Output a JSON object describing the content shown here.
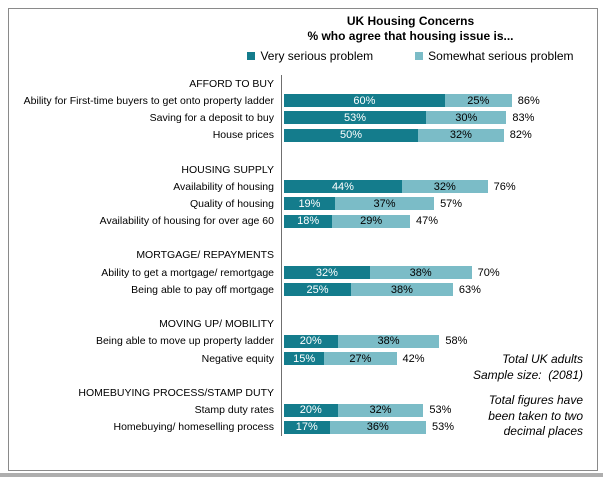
{
  "title": "UK Housing Concerns",
  "subtitle": "% who agree that housing issue is...",
  "legend": [
    {
      "label": "Very serious problem",
      "color": "#147C8C"
    },
    {
      "label": "Somewhat serious problem",
      "color": "#7BBCC7"
    }
  ],
  "annotations": {
    "sample_line1": "Total UK adults",
    "sample_line2": "Sample size:  (2081)",
    "note_line1": "Total figures have",
    "note_line2": "been taken to two",
    "note_line3": "decimal places"
  },
  "chart_data": {
    "type": "bar",
    "orientation": "horizontal",
    "stacked": true,
    "title": "UK Housing Concerns",
    "subtitle": "% who agree that housing issue is...",
    "xlim": [
      0,
      100
    ],
    "grid": false,
    "legend_position": "top",
    "series_names": [
      "Very serious problem",
      "Somewhat serious problem"
    ],
    "colors": {
      "very": "#147C8C",
      "somewhat": "#7BBCC7"
    },
    "groups": [
      {
        "header": "AFFORD TO BUY",
        "items": [
          {
            "label": "Ability for First-time buyers to get onto property ladder",
            "very": 60,
            "somewhat": 25,
            "total": 86
          },
          {
            "label": "Saving for a deposit to buy",
            "very": 53,
            "somewhat": 30,
            "total": 83
          },
          {
            "label": "House prices",
            "very": 50,
            "somewhat": 32,
            "total": 82
          }
        ]
      },
      {
        "header": "HOUSING SUPPLY",
        "items": [
          {
            "label": "Availability of housing",
            "very": 44,
            "somewhat": 32,
            "total": 76
          },
          {
            "label": "Quality of housing",
            "very": 19,
            "somewhat": 37,
            "total": 57
          },
          {
            "label": "Availability of housing for over age 60",
            "very": 18,
            "somewhat": 29,
            "total": 47
          }
        ]
      },
      {
        "header": "MORTGAGE/ REPAYMENTS",
        "items": [
          {
            "label": "Ability to get a mortgage/ remortgage",
            "very": 32,
            "somewhat": 38,
            "total": 70
          },
          {
            "label": "Being able to pay off mortgage",
            "very": 25,
            "somewhat": 38,
            "total": 63
          }
        ]
      },
      {
        "header": "MOVING UP/ MOBILITY",
        "items": [
          {
            "label": "Being able to move up property ladder",
            "very": 20,
            "somewhat": 38,
            "total": 58
          },
          {
            "label": "Negative equity",
            "very": 15,
            "somewhat": 27,
            "total": 42
          }
        ]
      },
      {
        "header": "HOMEBUYING PROCESS/STAMP DUTY",
        "items": [
          {
            "label": "Stamp duty rates",
            "very": 20,
            "somewhat": 32,
            "total": 53
          },
          {
            "label": "Homebuying/ homeselling process",
            "very": 17,
            "somewhat": 36,
            "total": 53
          }
        ]
      }
    ]
  }
}
